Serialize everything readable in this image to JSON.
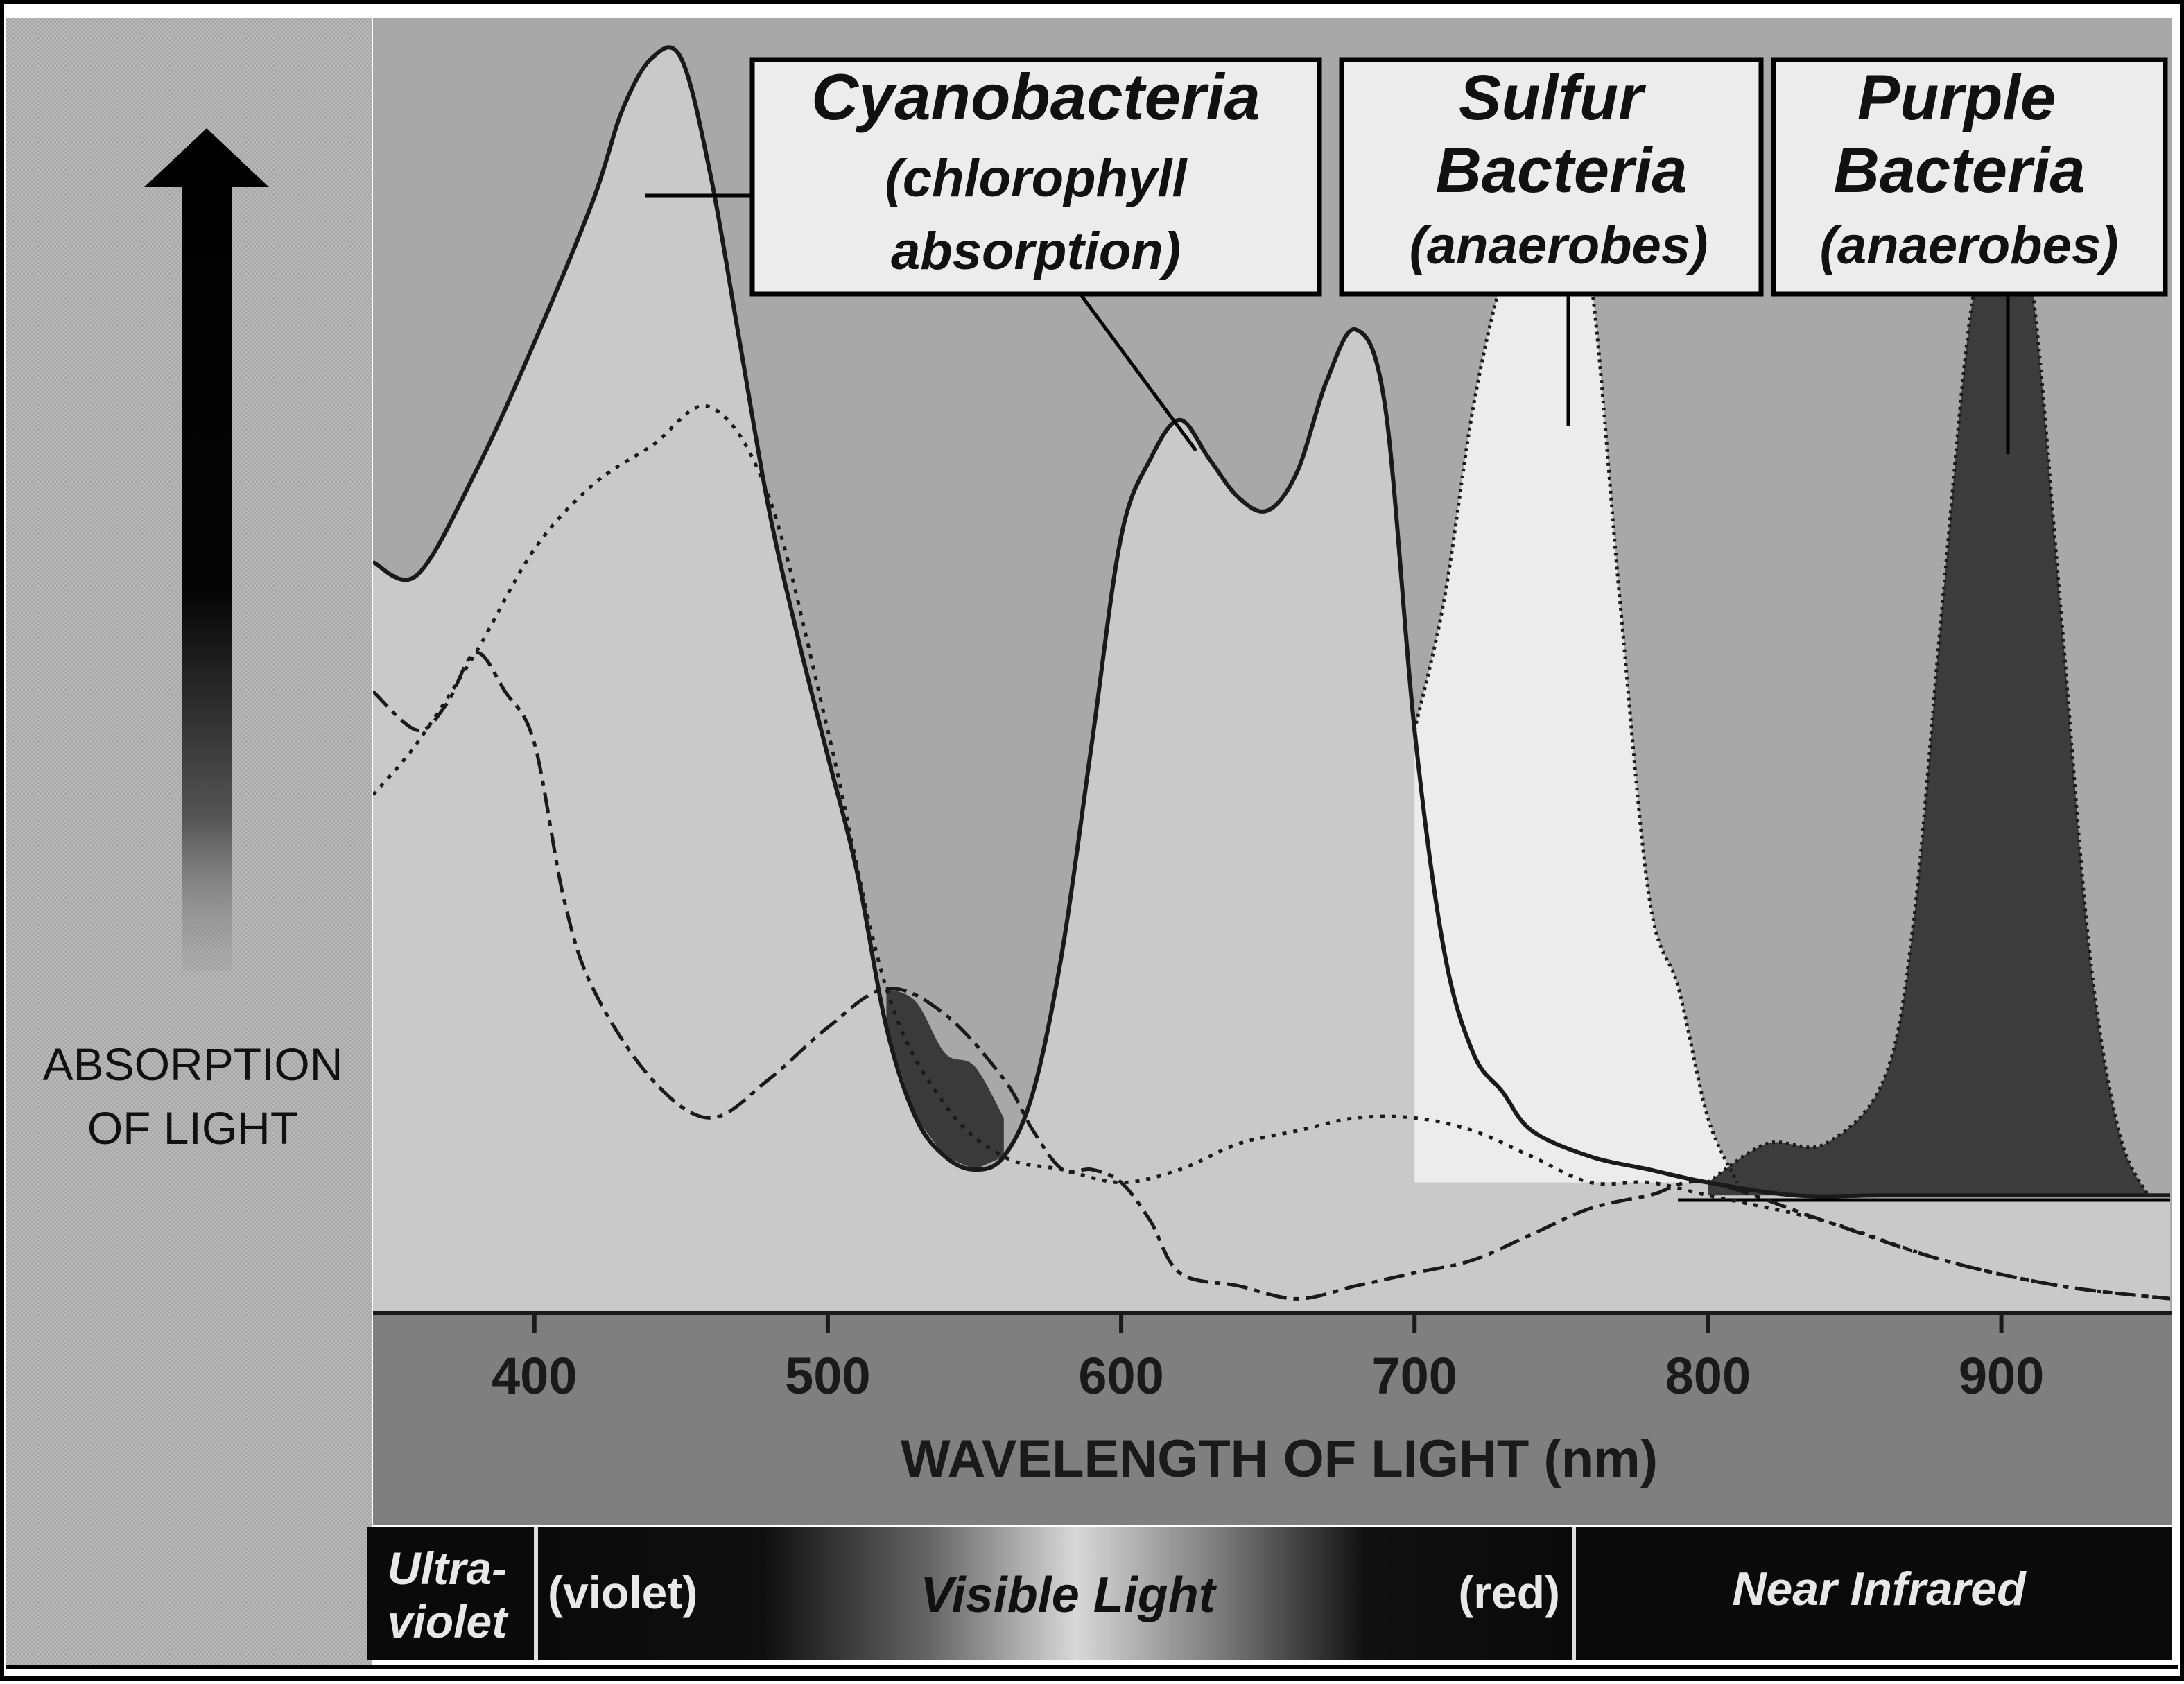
{
  "y_axis_label": [
    "ABSORPTION",
    "OF LIGHT"
  ],
  "x_axis_label": "WAVELENGTH OF LIGHT (nm)",
  "x_ticks": [
    "400",
    "500",
    "600",
    "700",
    "800",
    "900"
  ],
  "labels": {
    "cyanobacteria": {
      "title": "Cyanobacteria",
      "sub1": "(chlorophyll",
      "sub2": "absorption)"
    },
    "sulfur": {
      "title1": "Sulfur",
      "title2": "Bacteria",
      "sub": "(anaerobes)"
    },
    "purple": {
      "title1": "Purple",
      "title2": "Bacteria",
      "sub": "(anaerobes)"
    }
  },
  "spectrum_bar": {
    "uv_line1": "Ultra-",
    "uv_line2": "violet",
    "violet": "(violet)",
    "visible": "Visible Light",
    "red": "(red)",
    "near_ir": "Near Infrared"
  },
  "colors": {
    "background": "#a9a9a9",
    "light_fill": "#c9c9c9",
    "sulfur_fill": "#ececec",
    "purple_fill": "#3c3c3c",
    "axis_band": "#7f7f7f",
    "spectrum_dark": "#0a0a0a"
  },
  "chart_data": {
    "type": "line",
    "title": "",
    "xlabel": "WAVELENGTH OF LIGHT (nm)",
    "ylabel": "ABSORPTION OF LIGHT",
    "xlim": [
      345,
      958
    ],
    "ylim": [
      0,
      100
    ],
    "x_ticks": [
      400,
      500,
      600,
      700,
      800,
      900
    ],
    "grid": false,
    "legend": "none",
    "series": [
      {
        "name": "Cyanobacteria (chlorophyll absorption)",
        "style": "solid",
        "x": [
          345,
          360,
          380,
          400,
          420,
          430,
          440,
          450,
          460,
          470,
          480,
          490,
          500,
          510,
          520,
          530,
          540,
          550,
          560,
          570,
          580,
          590,
          600,
          610,
          620,
          630,
          640,
          650,
          660,
          670,
          680,
          690,
          700,
          710,
          720,
          730,
          740,
          760,
          780,
          800,
          830,
          860,
          900,
          958
        ],
        "y": [
          58,
          57,
          65,
          75,
          86,
          93,
          97,
          97,
          88,
          75,
          62,
          52,
          43,
          34,
          22,
          15,
          12,
          11,
          12,
          17,
          28,
          44,
          60,
          66,
          69,
          66,
          63,
          62,
          65,
          72,
          76,
          70,
          45,
          28,
          20,
          17,
          14,
          12,
          11,
          10,
          9,
          9,
          9,
          9
        ]
      },
      {
        "name": "",
        "style": "dotted",
        "x": [
          345,
          360,
          380,
          400,
          420,
          440,
          460,
          480,
          500,
          520,
          540,
          560,
          580,
          600,
          620,
          640,
          660,
          680,
          700,
          720,
          740,
          760,
          780,
          800,
          840,
          880,
          920,
          958
        ],
        "y": [
          40,
          44,
          51,
          59,
          64,
          67,
          70,
          63,
          45,
          25,
          16,
          12,
          11,
          10,
          11,
          13,
          14,
          15,
          15,
          14,
          12,
          10,
          10,
          9,
          7,
          4,
          2,
          1
        ]
      },
      {
        "name": "",
        "style": "dashed",
        "x": [
          345,
          360,
          370,
          380,
          390,
          400,
          410,
          420,
          440,
          460,
          480,
          500,
          520,
          540,
          560,
          570,
          580,
          590,
          600,
          610,
          620,
          640,
          660,
          680,
          700,
          720,
          740,
          760,
          780,
          800,
          840,
          880,
          920,
          958
        ],
        "y": [
          48,
          45,
          47,
          51,
          48,
          44,
          32,
          25,
          18,
          15,
          18,
          22,
          25,
          23,
          18,
          14,
          11,
          11,
          10,
          7,
          3,
          2,
          1,
          2,
          3,
          4,
          6,
          8,
          9,
          10,
          7,
          4,
          2,
          1
        ]
      },
      {
        "name": "Sulfur Bacteria (anaerobes)",
        "style": "solid",
        "x": [
          700,
          710,
          720,
          730,
          740,
          750,
          760,
          770,
          780,
          790,
          800,
          810
        ],
        "y": [
          45,
          55,
          70,
          80,
          85,
          87,
          80,
          55,
          32,
          25,
          15,
          10
        ]
      },
      {
        "name": "Purple Bacteria (anaerobes)",
        "style": "solid",
        "x": [
          800,
          820,
          840,
          860,
          870,
          880,
          890,
          900,
          910,
          920,
          930,
          940,
          950
        ],
        "y": [
          10,
          13,
          13,
          18,
          30,
          55,
          78,
          85,
          80,
          55,
          28,
          14,
          9
        ]
      }
    ]
  }
}
